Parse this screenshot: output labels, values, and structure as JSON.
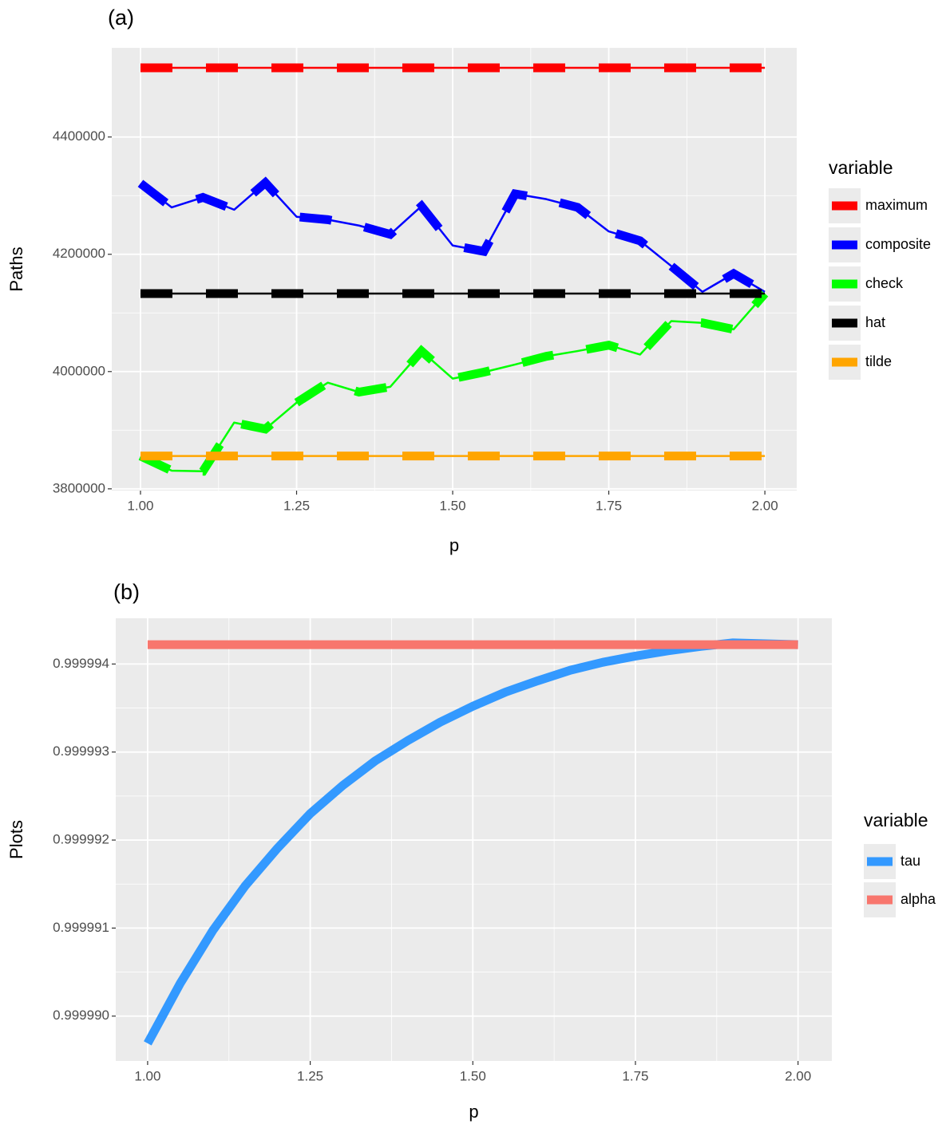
{
  "chart_data": [
    {
      "type": "line",
      "title": "(a)",
      "x_label": "p",
      "y_label": "Paths",
      "legend_title": "variable",
      "legend_position": "right",
      "grid": true,
      "linetype": "dashed",
      "x": [
        1.0,
        1.05,
        1.1,
        1.15,
        1.2,
        1.25,
        1.3,
        1.35,
        1.4,
        1.45,
        1.5,
        1.55,
        1.6,
        1.65,
        1.7,
        1.75,
        1.8,
        1.85,
        1.9,
        1.95,
        2.0
      ],
      "xlim": [
        0.954,
        2.051
      ],
      "xticks": [
        {
          "value": 1,
          "label": "1.00"
        },
        1.25,
        {
          "value": 1.5,
          "label": "1.50"
        },
        1.75,
        {
          "value": 2,
          "label": "2.00"
        }
      ],
      "ylim": [
        3797000,
        4552000
      ],
      "yticks": [
        3800000,
        4000000,
        4200000,
        4400000
      ],
      "series": [
        {
          "name": "maximum",
          "color": "#ff0000",
          "values": [
            4518000,
            4518000,
            4518000,
            4518000,
            4518000,
            4518000,
            4518000,
            4518000,
            4518000,
            4518000,
            4518000,
            4518000,
            4518000,
            4518000,
            4518000,
            4518000,
            4518000,
            4518000,
            4518000,
            4518000,
            4518000
          ]
        },
        {
          "name": "composite",
          "color": "#0000ff",
          "values": [
            4321000,
            4280000,
            4297000,
            4276000,
            4322000,
            4264000,
            4259000,
            4249000,
            4234000,
            4282000,
            4215000,
            4205000,
            4303000,
            4294000,
            4280000,
            4239000,
            4223000,
            4180000,
            4136000,
            4167000,
            4136000
          ]
        },
        {
          "name": "check",
          "color": "#00ff00",
          "values": [
            3856000,
            3831000,
            3830000,
            3913000,
            3902000,
            3947000,
            3981000,
            3965000,
            3974000,
            4035000,
            3988000,
            3999000,
            4012000,
            4026000,
            4035000,
            4045000,
            4029000,
            4086000,
            4083000,
            4072000,
            4133000
          ]
        },
        {
          "name": "hat",
          "color": "#000000",
          "values": [
            4133000,
            4133000,
            4133000,
            4133000,
            4133000,
            4133000,
            4133000,
            4133000,
            4133000,
            4133000,
            4133000,
            4133000,
            4133000,
            4133000,
            4133000,
            4133000,
            4133000,
            4133000,
            4133000,
            4133000,
            4133000
          ]
        },
        {
          "name": "tilde",
          "color": "#ffa500",
          "values": [
            3856000,
            3856000,
            3856000,
            3856000,
            3856000,
            3856000,
            3856000,
            3856000,
            3856000,
            3856000,
            3856000,
            3856000,
            3856000,
            3856000,
            3856000,
            3856000,
            3856000,
            3856000,
            3856000,
            3856000,
            3856000
          ]
        }
      ]
    },
    {
      "type": "line",
      "title": "(b)",
      "x_label": "p",
      "y_label": "Plots",
      "legend_title": "variable",
      "legend_position": "right",
      "grid": true,
      "linetype": "solid",
      "x": [
        1.0,
        1.05,
        1.1,
        1.15,
        1.2,
        1.25,
        1.3,
        1.35,
        1.4,
        1.45,
        1.5,
        1.55,
        1.6,
        1.65,
        1.7,
        1.75,
        1.8,
        1.85,
        1.9,
        1.95,
        2.0
      ],
      "xlim": [
        0.951,
        2.052
      ],
      "xticks": [
        {
          "value": 1,
          "label": "1.00"
        },
        1.25,
        {
          "value": 1.5,
          "label": "1.50"
        },
        1.75,
        {
          "value": 2,
          "label": "2.00"
        }
      ],
      "ylim": [
        0.99998949,
        0.99999452
      ],
      "yticks": [
        {
          "value": 0.99999,
          "label": "0.999990"
        },
        0.999991,
        0.999992,
        0.999993,
        0.999994
      ],
      "series": [
        {
          "name": "tau",
          "color": "#3399ff",
          "values": [
            0.99998969,
            0.99999037,
            0.99999097,
            0.99999148,
            0.99999191,
            0.9999923,
            0.99999262,
            0.9999929,
            0.99999313,
            0.99999334,
            0.99999352,
            0.99999368,
            0.99999381,
            0.99999393,
            0.99999402,
            0.99999409,
            0.99999415,
            0.9999942,
            0.99999424,
            0.99999423,
            0.99999422
          ]
        },
        {
          "name": "alpha",
          "color": "#f8766d",
          "values": [
            0.99999422,
            0.99999422,
            0.99999422,
            0.99999422,
            0.99999422,
            0.99999422,
            0.99999422,
            0.99999422,
            0.99999422,
            0.99999422,
            0.99999422,
            0.99999422,
            0.99999422,
            0.99999422,
            0.99999422,
            0.99999422,
            0.99999422,
            0.99999422,
            0.99999422,
            0.99999422,
            0.99999422
          ]
        }
      ]
    }
  ]
}
